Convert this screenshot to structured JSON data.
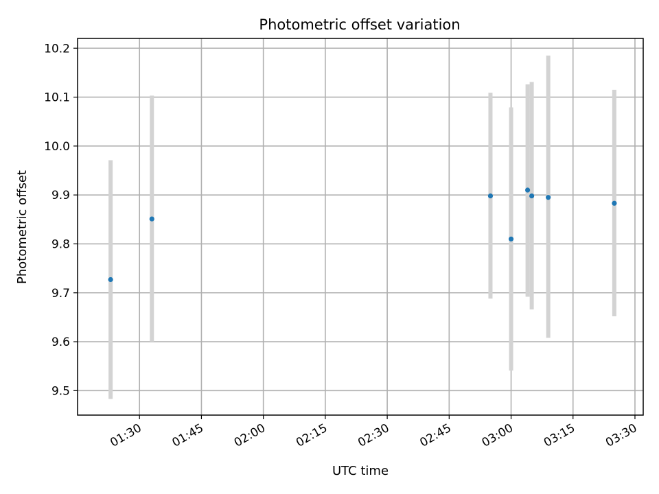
{
  "chart_data": {
    "type": "scatter",
    "title": "Photometric offset variation",
    "xlabel": "UTC time",
    "ylabel": "Photometric offset",
    "x_is_time": true,
    "xlim": [
      "01:15",
      "03:32"
    ],
    "ylim": [
      9.45,
      10.22
    ],
    "x_ticks": [
      "01:30",
      "01:45",
      "02:00",
      "02:15",
      "02:30",
      "02:45",
      "03:00",
      "03:15",
      "03:30"
    ],
    "y_ticks": [
      9.5,
      9.6,
      9.7,
      9.8,
      9.9,
      10.0,
      10.1,
      10.2
    ],
    "grid": true,
    "colors": {
      "points": "#1f77b4",
      "error_bars": "#d3d3d3"
    },
    "points": [
      {
        "x": "01:23",
        "y": 9.727,
        "y_low": 9.483,
        "y_high": 9.971
      },
      {
        "x": "01:33",
        "y": 9.851,
        "y_low": 9.6,
        "y_high": 10.103
      },
      {
        "x": "02:55",
        "y": 9.898,
        "y_low": 9.688,
        "y_high": 10.109
      },
      {
        "x": "03:00",
        "y": 9.81,
        "y_low": 9.541,
        "y_high": 10.079
      },
      {
        "x": "03:04",
        "y": 9.91,
        "y_low": 9.692,
        "y_high": 10.126
      },
      {
        "x": "03:05",
        "y": 9.898,
        "y_low": 9.666,
        "y_high": 10.131
      },
      {
        "x": "03:09",
        "y": 9.895,
        "y_low": 9.608,
        "y_high": 10.185
      },
      {
        "x": "03:25",
        "y": 9.883,
        "y_low": 9.652,
        "y_high": 10.115
      }
    ]
  }
}
